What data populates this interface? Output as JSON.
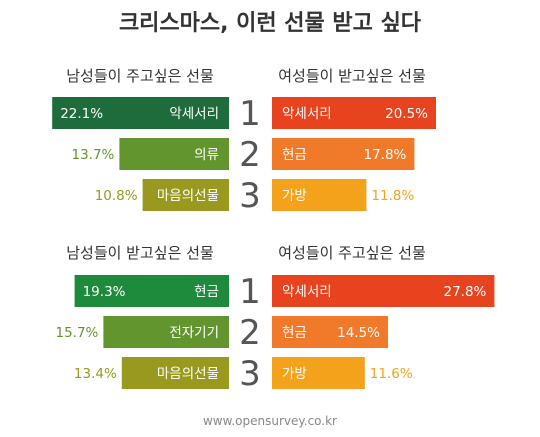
{
  "title": "크리스마스, 이런 선물 받고 싶다",
  "footer": "www.opensurvey.co.kr",
  "chart_data": [
    {
      "type": "bar",
      "title": "남성들이 주고싶은 선물",
      "side": "left",
      "categories": [
        "악세서리",
        "의류",
        "마음의선물"
      ],
      "values": [
        22.1,
        13.7,
        10.8
      ],
      "unit": "%",
      "colors": [
        "#1e6b3c",
        "#63952f",
        "#99991f"
      ],
      "ranks": [
        "1",
        "2",
        "3"
      ]
    },
    {
      "type": "bar",
      "title": "여성들이 받고싶은 선물",
      "side": "right",
      "categories": [
        "악세서리",
        "현금",
        "가방"
      ],
      "values": [
        20.5,
        17.8,
        11.8
      ],
      "unit": "%",
      "colors": [
        "#e8431f",
        "#f0792a",
        "#f4a21c"
      ]
    },
    {
      "type": "bar",
      "title": "남성들이 받고싶은 선물",
      "side": "left",
      "categories": [
        "현금",
        "전자기기",
        "마음의선물"
      ],
      "values": [
        19.3,
        15.7,
        13.4
      ],
      "unit": "%",
      "colors": [
        "#1e8a3c",
        "#63952f",
        "#99991f"
      ],
      "ranks": [
        "1",
        "2",
        "3"
      ]
    },
    {
      "type": "bar",
      "title": "여성들이 주고싶은 선물",
      "side": "right",
      "categories": [
        "악세서리",
        "현금",
        "가방"
      ],
      "values": [
        27.8,
        14.5,
        11.6
      ],
      "unit": "%",
      "colors": [
        "#e8431f",
        "#f0792a",
        "#f4a21c"
      ]
    }
  ]
}
